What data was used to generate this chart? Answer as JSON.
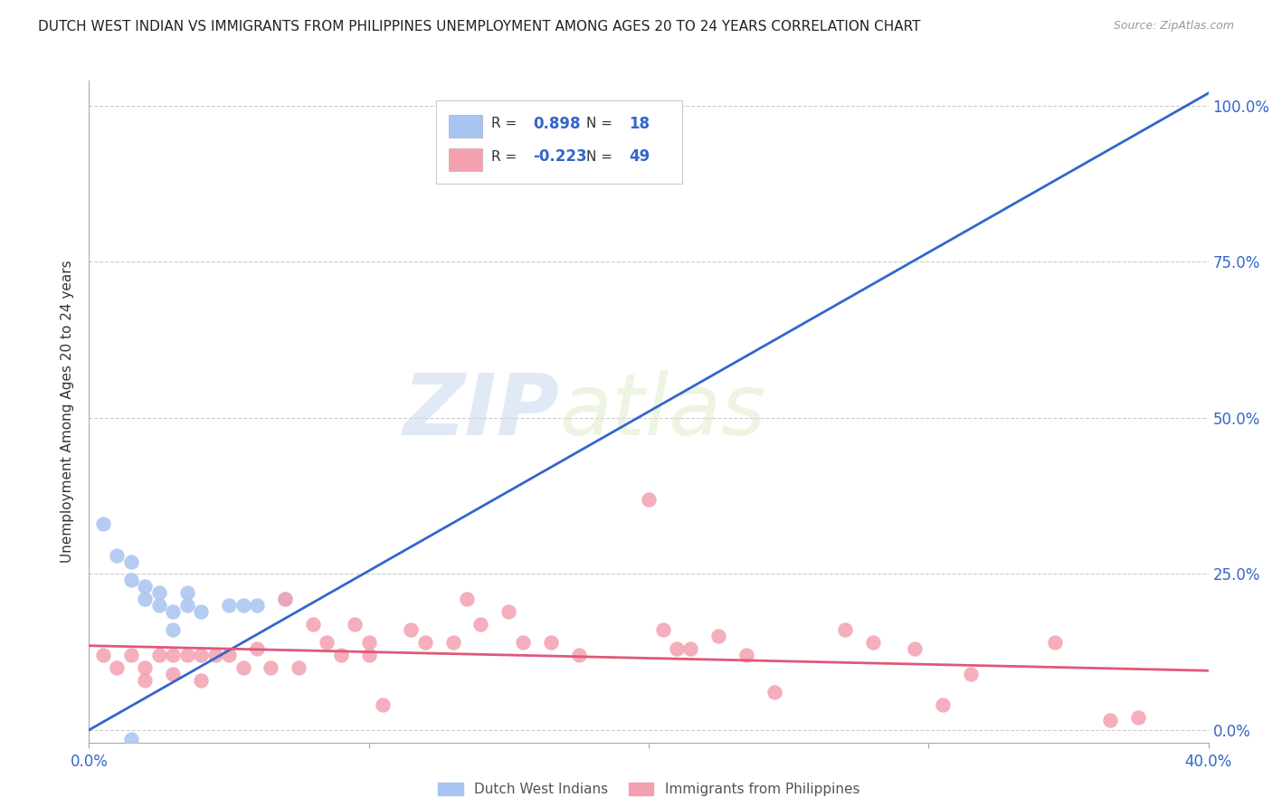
{
  "title": "DUTCH WEST INDIAN VS IMMIGRANTS FROM PHILIPPINES UNEMPLOYMENT AMONG AGES 20 TO 24 YEARS CORRELATION CHART",
  "source": "Source: ZipAtlas.com",
  "ylabel": "Unemployment Among Ages 20 to 24 years",
  "right_yticks": [
    0.0,
    0.25,
    0.5,
    0.75,
    1.0
  ],
  "right_yticklabels": [
    "0.0%",
    "25.0%",
    "50.0%",
    "75.0%",
    "100.0%"
  ],
  "xmin": 0.0,
  "xmax": 0.4,
  "ymin": -0.02,
  "ymax": 1.04,
  "blue_R": "0.898",
  "blue_N": "18",
  "pink_R": "-0.223",
  "pink_N": "49",
  "blue_color": "#a8c4f0",
  "pink_color": "#f4a0b0",
  "blue_line_color": "#3366cc",
  "pink_line_color": "#e05878",
  "watermark_zip": "ZIP",
  "watermark_atlas": "atlas",
  "blue_scatter_x": [
    0.005,
    0.01,
    0.015,
    0.015,
    0.02,
    0.02,
    0.025,
    0.025,
    0.03,
    0.03,
    0.035,
    0.035,
    0.04,
    0.05,
    0.055,
    0.06,
    0.07,
    0.015
  ],
  "blue_scatter_y": [
    0.33,
    0.28,
    0.27,
    0.24,
    0.23,
    0.21,
    0.22,
    0.2,
    0.19,
    0.16,
    0.22,
    0.2,
    0.19,
    0.2,
    0.2,
    0.2,
    0.21,
    -0.015
  ],
  "pink_scatter_x": [
    0.005,
    0.01,
    0.015,
    0.02,
    0.02,
    0.025,
    0.03,
    0.03,
    0.035,
    0.04,
    0.04,
    0.045,
    0.05,
    0.055,
    0.06,
    0.065,
    0.07,
    0.075,
    0.08,
    0.085,
    0.09,
    0.095,
    0.1,
    0.1,
    0.105,
    0.115,
    0.12,
    0.13,
    0.135,
    0.14,
    0.15,
    0.155,
    0.165,
    0.175,
    0.2,
    0.205,
    0.21,
    0.215,
    0.225,
    0.235,
    0.245,
    0.27,
    0.28,
    0.295,
    0.305,
    0.315,
    0.345,
    0.365,
    0.375
  ],
  "pink_scatter_y": [
    0.12,
    0.1,
    0.12,
    0.1,
    0.08,
    0.12,
    0.12,
    0.09,
    0.12,
    0.12,
    0.08,
    0.12,
    0.12,
    0.1,
    0.13,
    0.1,
    0.21,
    0.1,
    0.17,
    0.14,
    0.12,
    0.17,
    0.14,
    0.12,
    0.04,
    0.16,
    0.14,
    0.14,
    0.21,
    0.17,
    0.19,
    0.14,
    0.14,
    0.12,
    0.37,
    0.16,
    0.13,
    0.13,
    0.15,
    0.12,
    0.06,
    0.16,
    0.14,
    0.13,
    0.04,
    0.09,
    0.14,
    0.015,
    0.02
  ],
  "blue_line_x": [
    0.0,
    0.4
  ],
  "blue_line_y": [
    0.0,
    1.02
  ],
  "pink_line_x": [
    0.0,
    0.4
  ],
  "pink_line_y": [
    0.135,
    0.095
  ],
  "legend_blue_label": "Dutch West Indians",
  "legend_pink_label": "Immigrants from Philippines",
  "grid_color": "#cccccc",
  "background_color": "#ffffff",
  "title_fontsize": 11,
  "source_fontsize": 9
}
